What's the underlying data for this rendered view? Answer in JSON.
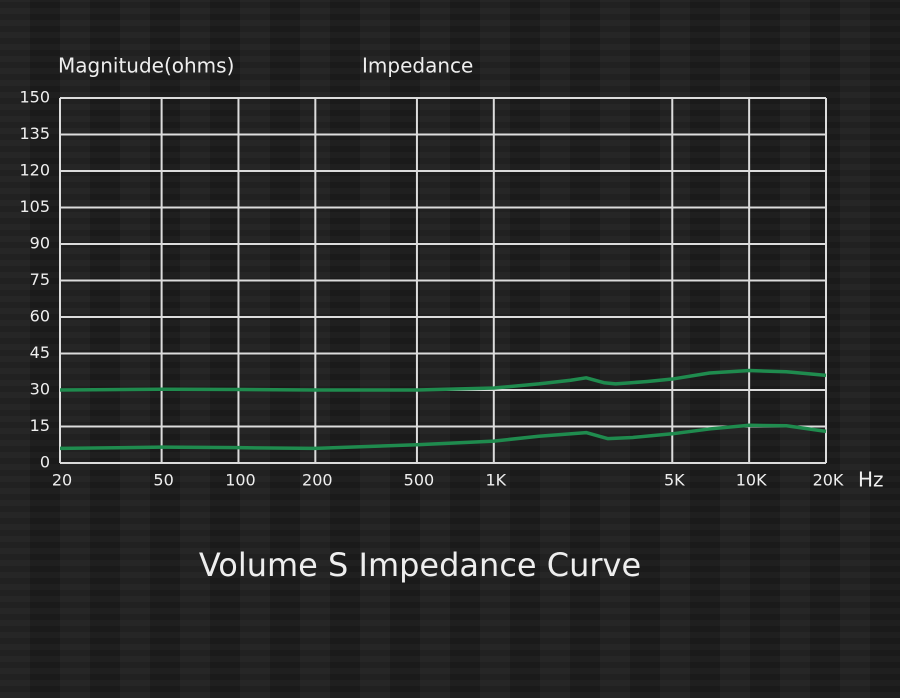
{
  "chart_data": {
    "type": "line",
    "title": "Impedance",
    "ylabel": "Magnitude(ohms)",
    "xlabel": "Hz",
    "caption": "Volume S Impedance Curve",
    "xlog": true,
    "grid": true,
    "xlim": [
      20,
      20000
    ],
    "ylim": [
      0,
      150
    ],
    "xticks": [
      20,
      50,
      100,
      200,
      500,
      {
        "value": 1000,
        "label": "1K"
      },
      {
        "value": 5000,
        "label": "5K"
      },
      {
        "value": 10000,
        "label": "10K"
      },
      {
        "value": 20000,
        "label": "20K"
      }
    ],
    "yticks": [
      0,
      15,
      30,
      45,
      60,
      75,
      90,
      105,
      120,
      135,
      150
    ],
    "series": [
      {
        "color": "#1f8b4e",
        "x": [
          20,
          50,
          100,
          200,
          500,
          1000,
          1500,
          2000,
          2300,
          2700,
          3000,
          4000,
          5000,
          7000,
          10000,
          14000,
          20000
        ],
        "values": [
          30,
          30.3,
          30.2,
          30,
          30,
          30.8,
          32.5,
          34,
          35,
          33,
          32.5,
          33.5,
          34.5,
          37,
          38,
          37.5,
          36
        ]
      },
      {
        "color": "#1f8b4e",
        "x": [
          20,
          50,
          100,
          200,
          500,
          1000,
          1500,
          2300,
          2800,
          3500,
          5000,
          7000,
          10000,
          14000,
          20000
        ],
        "values": [
          6,
          6.5,
          6.3,
          6,
          7.5,
          9,
          11,
          12.5,
          10,
          10.5,
          12,
          14,
          15.5,
          15.3,
          13
        ]
      }
    ]
  }
}
